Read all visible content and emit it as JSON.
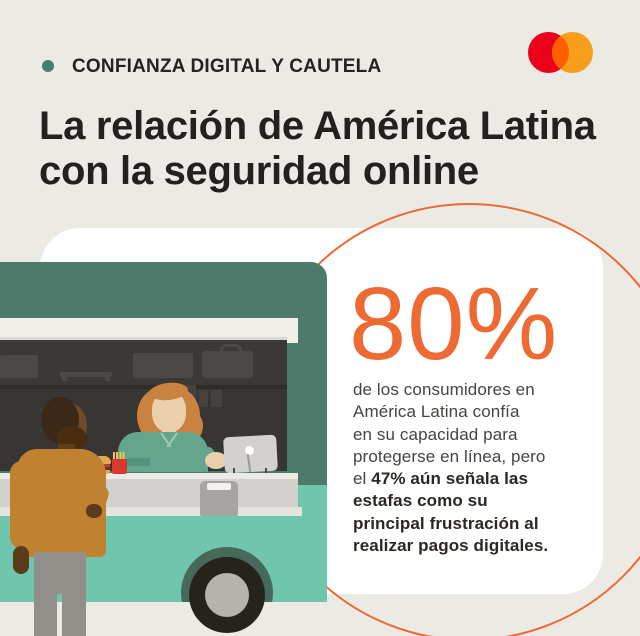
{
  "header": {
    "eyebrow": "CONFIANZA DIGITAL Y CAUTELA",
    "title_line1": "La relación de América Latina",
    "title_line2": "con la seguridad online"
  },
  "brand": {
    "logo": "mastercard",
    "red": "#EB001B",
    "orange": "#F79E1B",
    "overlap": "#FF5F00"
  },
  "stat": {
    "value": "80%",
    "description_lines": [
      {
        "parts": [
          {
            "text": "de los consumidores en",
            "bold": false
          }
        ]
      },
      {
        "parts": [
          {
            "text": "América Latina confía",
            "bold": false
          }
        ]
      },
      {
        "parts": [
          {
            "text": "en su capacidad para",
            "bold": false
          }
        ]
      },
      {
        "parts": [
          {
            "text": "protegerse en línea, pero",
            "bold": false
          }
        ]
      },
      {
        "parts": [
          {
            "text": "el ",
            "bold": false
          },
          {
            "text": "47% aún señala las",
            "bold": true
          }
        ]
      },
      {
        "parts": [
          {
            "text": "estafas como su",
            "bold": true
          }
        ]
      },
      {
        "parts": [
          {
            "text": "principal frustración al",
            "bold": true
          }
        ]
      },
      {
        "parts": [
          {
            "text": "realizar pagos digitales.",
            "bold": true
          }
        ]
      }
    ]
  },
  "palette": {
    "background": "#ECEAE4",
    "card": "#FFFFFF",
    "accent_orange": "#ED6B33",
    "headline_text": "#23211D",
    "body_text": "#474441",
    "eyebrow_dot_teal": "#4A7D6F",
    "truck_dark_teal": "#4D7A6B",
    "truck_mint": "#70C6AC"
  },
  "illustration": {
    "label": "food-truck-payment-scene"
  }
}
